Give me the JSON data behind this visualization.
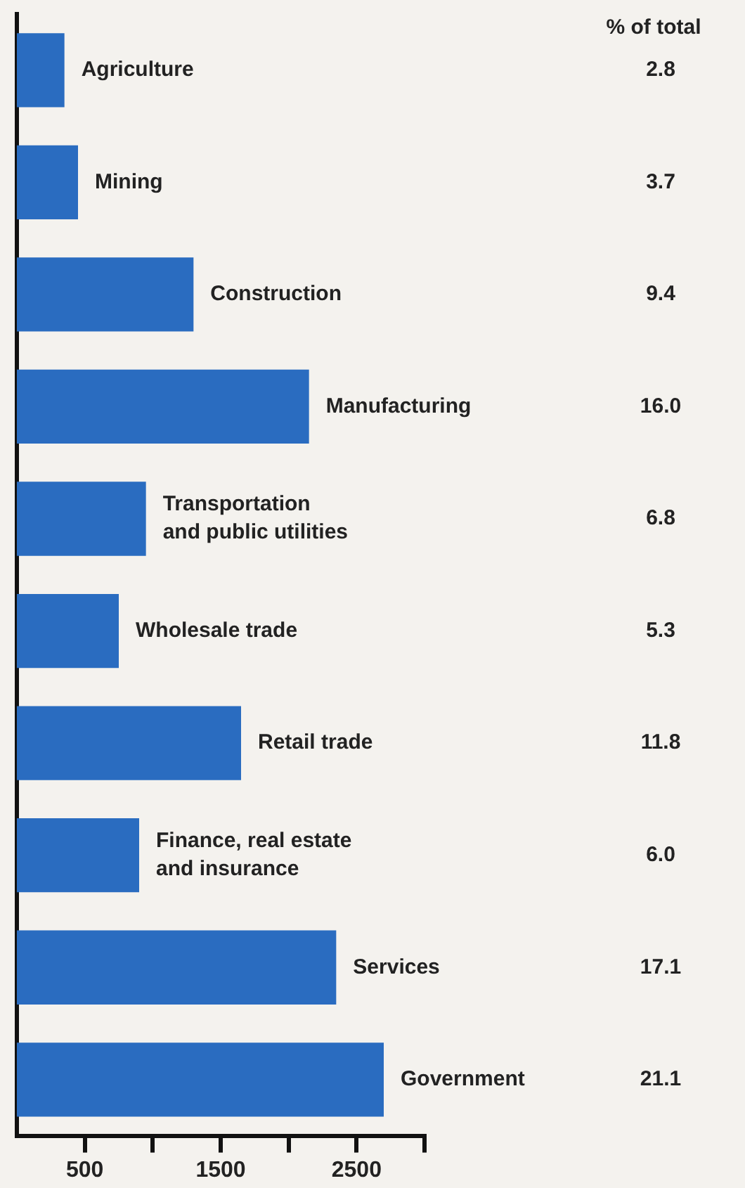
{
  "chart_data": {
    "type": "bar",
    "orientation": "horizontal",
    "categories": [
      "Agriculture",
      "Mining",
      "Construction",
      "Manufacturing",
      "Transportation\nand public utilities",
      "Wholesale trade",
      "Retail trade",
      "Finance, real estate\nand insurance",
      "Services",
      "Government"
    ],
    "values": [
      350,
      450,
      1300,
      2150,
      950,
      750,
      1650,
      900,
      2350,
      2700
    ],
    "color": "#2a6cc0",
    "xlim": [
      0,
      3000
    ],
    "xticks": [
      500,
      {
        "value": 1000,
        "label": null
      },
      1500,
      {
        "value": 2000,
        "label": null
      },
      2500,
      {
        "value": 3000,
        "label": null
      }
    ],
    "annotations": [
      "% of total",
      "2.8",
      "3.7",
      "9.4",
      "16.0",
      "6.8",
      "5.3",
      "11.8",
      "6.0",
      "17.1",
      "21.1"
    ]
  }
}
